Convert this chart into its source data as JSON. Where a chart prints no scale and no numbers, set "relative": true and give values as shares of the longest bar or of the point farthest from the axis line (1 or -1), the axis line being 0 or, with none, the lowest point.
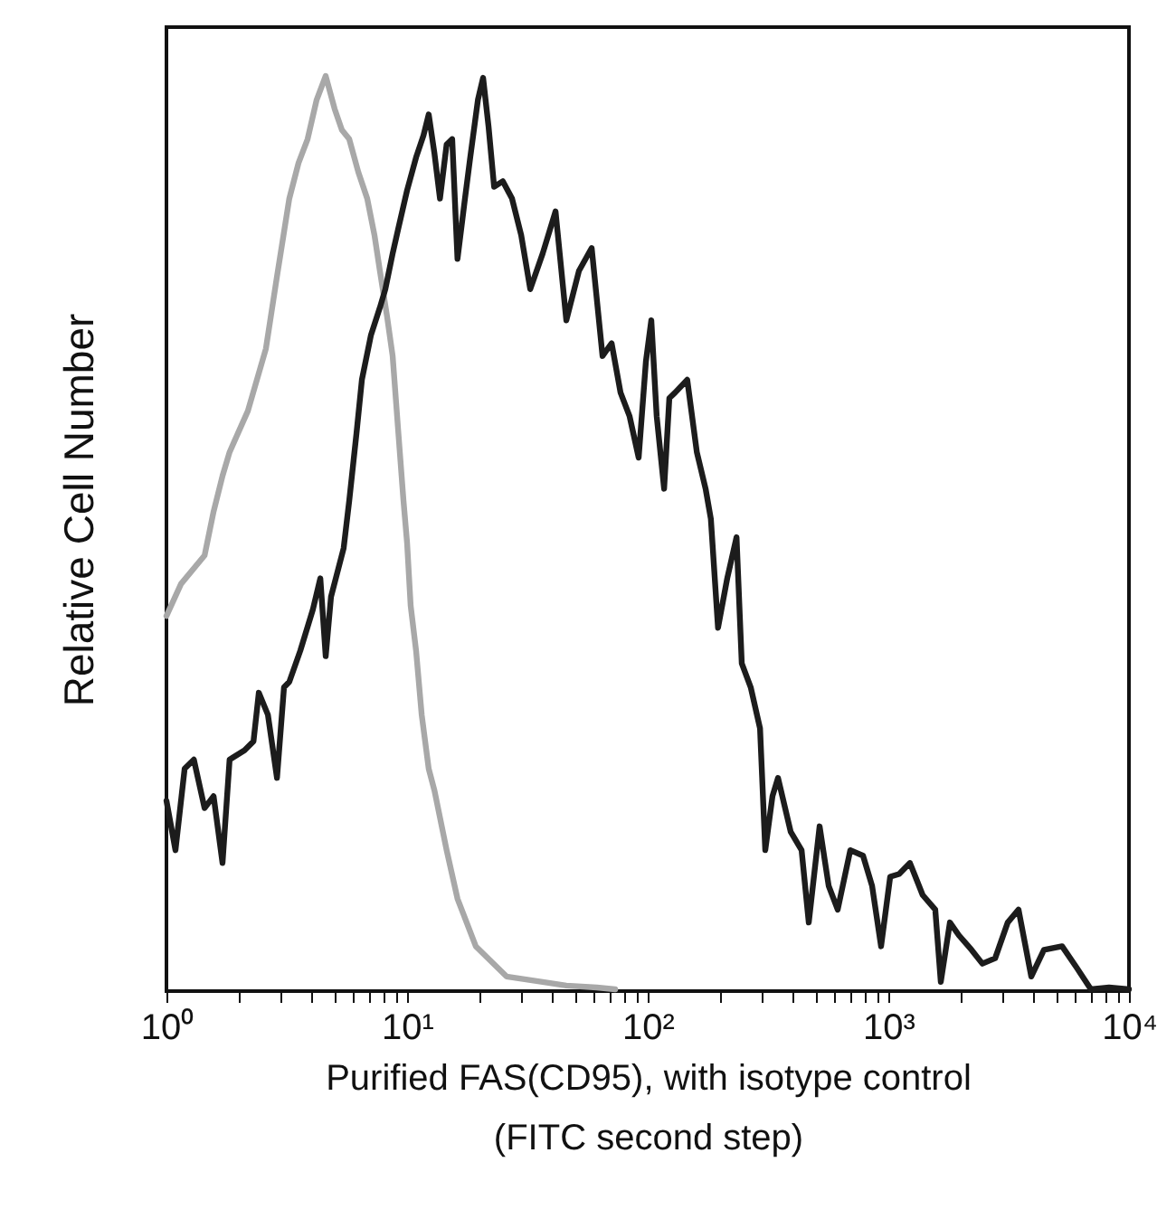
{
  "chart_data": {
    "type": "line",
    "xlabel": "Purified FAS(CD95), with isotype control\n(FITC second step)",
    "ylabel": "Relative Cell Number",
    "relative": true,
    "log": "x",
    "grid": false,
    "xlim": [
      1,
      10000
    ],
    "xticks": [
      {
        "value": 1,
        "label": "10⁰"
      },
      {
        "value": 2,
        "label": null
      },
      {
        "value": 3,
        "label": null
      },
      {
        "value": 4,
        "label": null
      },
      {
        "value": 5,
        "label": null
      },
      {
        "value": 6,
        "label": null
      },
      {
        "value": 7,
        "label": null
      },
      {
        "value": 8,
        "label": null
      },
      {
        "value": 9,
        "label": null
      },
      {
        "value": 10,
        "label": "10¹"
      },
      {
        "value": 20,
        "label": null
      },
      {
        "value": 30,
        "label": null
      },
      {
        "value": 40,
        "label": null
      },
      {
        "value": 50,
        "label": null
      },
      {
        "value": 60,
        "label": null
      },
      {
        "value": 70,
        "label": null
      },
      {
        "value": 80,
        "label": null
      },
      {
        "value": 90,
        "label": null
      },
      {
        "value": 100,
        "label": "10²"
      },
      {
        "value": 200,
        "label": null
      },
      {
        "value": 300,
        "label": null
      },
      {
        "value": 400,
        "label": null
      },
      {
        "value": 500,
        "label": null
      },
      {
        "value": 600,
        "label": null
      },
      {
        "value": 700,
        "label": null
      },
      {
        "value": 800,
        "label": null
      },
      {
        "value": 900,
        "label": null
      },
      {
        "value": 1000,
        "label": "10³"
      },
      {
        "value": 2000,
        "label": null
      },
      {
        "value": 3000,
        "label": null
      },
      {
        "value": 4000,
        "label": null
      },
      {
        "value": 5000,
        "label": null
      },
      {
        "value": 6000,
        "label": null
      },
      {
        "value": 7000,
        "label": null
      },
      {
        "value": 8000,
        "label": null
      },
      {
        "value": 9000,
        "label": null
      },
      {
        "value": 10000,
        "label": "10⁴"
      }
    ],
    "series": [
      {
        "color": "#a8a8a8",
        "x": [
          1,
          1.15,
          1.44,
          1.57,
          1.71,
          1.83,
          2.18,
          2.59,
          2.88,
          3.24,
          3.54,
          3.86,
          4.21,
          4.59,
          5.0,
          5.36,
          5.75,
          6.27,
          6.83,
          7.32,
          7.71,
          8.26,
          8.71,
          9.17,
          9.66,
          10.0,
          10.35,
          10.9,
          11.5,
          12.3,
          13.0,
          14.6,
          16.2,
          19.3,
          25.9,
          36.6,
          45.9,
          61.5,
          73.3
        ],
        "values": [
          0.41,
          0.445,
          0.476,
          0.524,
          0.563,
          0.589,
          0.634,
          0.702,
          0.781,
          0.866,
          0.905,
          0.931,
          0.974,
          1.0,
          0.964,
          0.941,
          0.931,
          0.895,
          0.866,
          0.826,
          0.787,
          0.737,
          0.694,
          0.615,
          0.536,
          0.49,
          0.421,
          0.372,
          0.302,
          0.243,
          0.219,
          0.154,
          0.101,
          0.049,
          0.016,
          0.01,
          0.006,
          0.004,
          0.002
        ]
      },
      {
        "color": "#1c1c1c",
        "x": [
          1,
          1.09,
          1.19,
          1.3,
          1.44,
          1.57,
          1.71,
          1.83,
          2.11,
          2.3,
          2.42,
          2.64,
          2.88,
          3.08,
          3.24,
          3.6,
          4.06,
          4.36,
          4.59,
          4.83,
          5.45,
          5.75,
          6.16,
          6.49,
          7.08,
          7.71,
          8.12,
          8.71,
          9.17,
          10,
          10.9,
          11.7,
          12.3,
          13.0,
          13.7,
          14.6,
          15.4,
          16.2,
          17.4,
          18.3,
          19.7,
          20.7,
          21.8,
          23.0,
          25.0,
          27.3,
          29.8,
          32.5,
          36.6,
          41.4,
          45.9,
          51.8,
          58.5,
          64.9,
          70.8,
          77.1,
          84.1,
          91.7,
          98.3,
          103.5,
          109,
          117,
          123,
          130,
          146,
          160,
          174,
          183,
          196,
          214,
          234,
          246,
          268,
          293,
          308,
          330,
          348,
          393,
          436,
          467,
          518,
          565,
          616,
          695,
          785,
          856,
          933,
          1018,
          1109,
          1230,
          1389,
          1567,
          1652,
          1803,
          1964,
          2218,
          2459,
          2780,
          3134,
          3476,
          3927,
          4433,
          5272,
          6053,
          6948,
          8265,
          10000
        ],
        "values": [
          0.208,
          0.154,
          0.243,
          0.253,
          0.2,
          0.213,
          0.14,
          0.253,
          0.263,
          0.273,
          0.326,
          0.302,
          0.233,
          0.332,
          0.338,
          0.372,
          0.417,
          0.451,
          0.366,
          0.431,
          0.484,
          0.536,
          0.609,
          0.668,
          0.717,
          0.747,
          0.767,
          0.806,
          0.832,
          0.875,
          0.911,
          0.935,
          0.958,
          0.915,
          0.866,
          0.925,
          0.931,
          0.8,
          0.866,
          0.911,
          0.974,
          0.998,
          0.945,
          0.879,
          0.885,
          0.866,
          0.826,
          0.767,
          0.806,
          0.852,
          0.733,
          0.787,
          0.812,
          0.694,
          0.708,
          0.654,
          0.628,
          0.583,
          0.688,
          0.733,
          0.628,
          0.549,
          0.648,
          0.654,
          0.668,
          0.589,
          0.549,
          0.516,
          0.397,
          0.451,
          0.496,
          0.358,
          0.332,
          0.287,
          0.154,
          0.213,
          0.233,
          0.174,
          0.154,
          0.075,
          0.18,
          0.115,
          0.089,
          0.154,
          0.148,
          0.115,
          0.049,
          0.125,
          0.128,
          0.14,
          0.105,
          0.089,
          0.01,
          0.075,
          0.061,
          0.045,
          0.03,
          0.036,
          0.075,
          0.089,
          0.016,
          0.045,
          0.049,
          0.026,
          0.002,
          0.004,
          0.002
        ]
      }
    ]
  }
}
